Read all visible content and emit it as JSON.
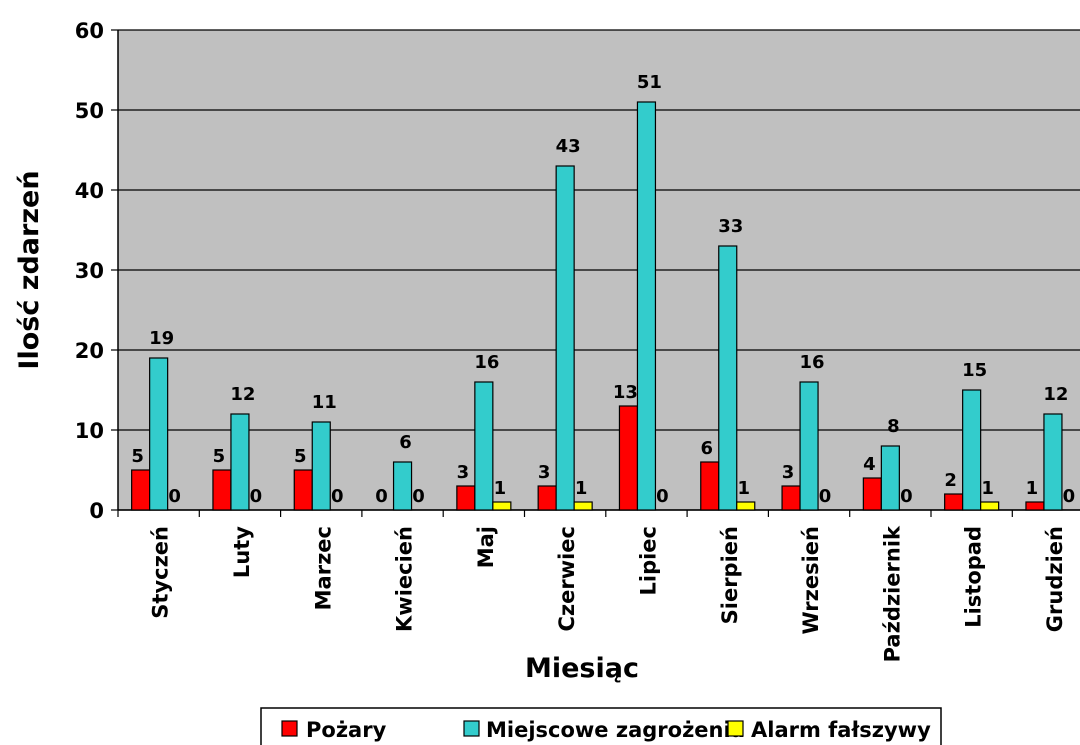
{
  "chart_data": {
    "type": "bar",
    "title": "",
    "xlabel": "Miesiąc",
    "ylabel": "Ilość zdarzeń",
    "ylim": [
      0,
      60
    ],
    "yticks": [
      0,
      10,
      20,
      30,
      40,
      50,
      60
    ],
    "grid": true,
    "legend_position": "bottom",
    "categories": [
      "Styczeń",
      "Luty",
      "Marzec",
      "Kwiecień",
      "Maj",
      "Czerwiec",
      "Lipiec",
      "Sierpień",
      "Wrzesień",
      "Październik",
      "Listopad",
      "Grudzień"
    ],
    "series": [
      {
        "name": "Pożary",
        "color": "#ff0000",
        "values": [
          5,
          5,
          5,
          0,
          3,
          3,
          13,
          6,
          3,
          4,
          2,
          1
        ]
      },
      {
        "name": "Miejscowe zagrożenia",
        "color": "#33cccc",
        "values": [
          19,
          12,
          11,
          6,
          16,
          43,
          51,
          33,
          16,
          8,
          15,
          12
        ]
      },
      {
        "name": "Alarm fałszywy",
        "color": "#ffff00",
        "values": [
          0,
          0,
          0,
          0,
          1,
          1,
          0,
          1,
          0,
          0,
          1,
          0
        ]
      }
    ],
    "plot_background": "#c0c0c0"
  }
}
